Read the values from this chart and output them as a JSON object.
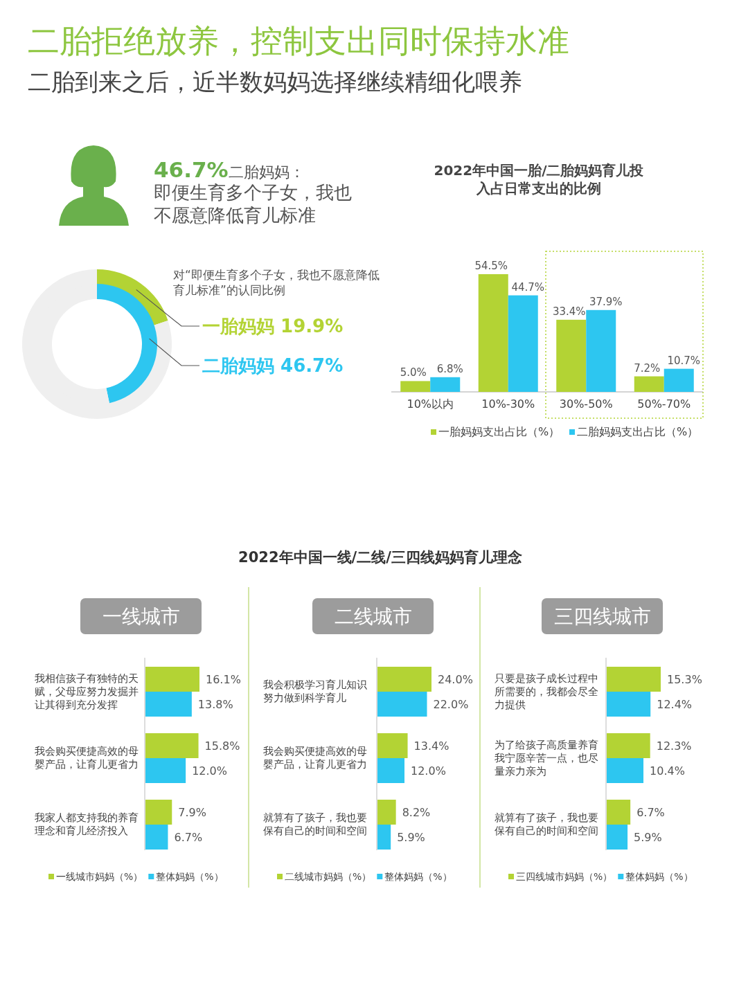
{
  "chart_data": [
    {
      "type": "other",
      "title": "二胎拒绝放养，控制支出同时保持水准",
      "subtitle": "二胎到来之后，近半数妈妈选择继续精细化喂养",
      "annotations": [
        "46.7%",
        "二胎妈妈：",
        "即便生育多个子女，我也不愿意降低育儿标准"
      ]
    },
    {
      "type": "donut",
      "title": "对“即便生育多个子女，我也不愿意降低育儿标准”的认同比例",
      "categories": [
        "一胎妈妈",
        null
      ],
      "values": [
        19.9,
        80.1
      ],
      "colors": [
        "#b3d334",
        "#efefef"
      ],
      "value_labels": [
        "19.9%",
        null
      ]
    },
    {
      "type": "donut",
      "categories": [
        "二胎妈妈",
        null
      ],
      "values": [
        46.7,
        53.3
      ],
      "colors": [
        "#2dc6f0",
        "#efefef"
      ],
      "value_labels": [
        "46.7%",
        null
      ]
    },
    {
      "type": "bar",
      "title": "2022年中国一胎/二胎妈妈育儿投入占日常支出的比例",
      "categories": [
        "10%以内",
        "10%-30%",
        "30%-50%",
        "50%-70%"
      ],
      "legend": "bottom",
      "series": [
        {
          "name": "一胎妈妈支出占比（%）",
          "color": "#b3d334",
          "values": [
            5.0,
            54.5,
            33.4,
            7.2
          ],
          "value_labels": [
            "5.0%",
            "54.5%",
            "33.4%",
            "7.2%"
          ]
        },
        {
          "name": "二胎妈妈支出占比（%）",
          "color": "#2dc6f0",
          "values": [
            6.8,
            44.7,
            37.9,
            10.7
          ],
          "value_labels": [
            "6.8%",
            "44.7%",
            "37.9%",
            "10.7%"
          ]
        }
      ]
    },
    {
      "type": "other",
      "title": "2022年中国一线/二线/三四线妈妈育儿理念"
    },
    {
      "type": "bar",
      "orientation": "horizontal",
      "title": "一线城市",
      "categories": [
        "我相信孩子有独特的天赋，父母应努力发掘并让其得到充分发挥",
        "我会购买便捷高效的母婴产品，让育儿更省力",
        "我家人都支持我的养育理念和育儿经济投入"
      ],
      "legend": "bottom",
      "series": [
        {
          "name": "一线城市妈妈（%）",
          "color": "#b3d334",
          "values": [
            16.1,
            15.8,
            7.9
          ],
          "value_labels": [
            "16.1%",
            "15.8%",
            "7.9%"
          ]
        },
        {
          "name": "整体妈妈（%）",
          "color": "#2dc6f0",
          "values": [
            13.8,
            12.0,
            6.7
          ],
          "value_labels": [
            "13.8%",
            "12.0%",
            "6.7%"
          ]
        }
      ]
    },
    {
      "type": "bar",
      "orientation": "horizontal",
      "title": "二线城市",
      "categories": [
        "我会积极学习育儿知识努力做到科学育儿",
        "我会购买便捷高效的母婴产品，让育儿更省力",
        "就算有了孩子，我也要保有自己的时间和空间"
      ],
      "legend": "bottom",
      "series": [
        {
          "name": "二线城市妈妈（%）",
          "color": "#b3d334",
          "values": [
            24.0,
            13.4,
            8.2
          ],
          "value_labels": [
            "24.0%",
            "13.4%",
            "8.2%"
          ]
        },
        {
          "name": "整体妈妈（%）",
          "color": "#2dc6f0",
          "values": [
            22.0,
            12.0,
            5.9
          ],
          "value_labels": [
            "22.0%",
            "12.0%",
            "5.9%"
          ]
        }
      ]
    },
    {
      "type": "bar",
      "orientation": "horizontal",
      "title": "三四线城市",
      "categories": [
        "只要是孩子成长过程中所需要的，我都会尽全力提供",
        "为了给孩子高质量养育我宁愿辛苦一点，也尽量亲力亲为",
        "就算有了孩子，我也要保有自己的时间和空间"
      ],
      "legend": "bottom",
      "series": [
        {
          "name": "三四线城市妈妈（%）",
          "color": "#b3d334",
          "values": [
            15.3,
            12.3,
            6.7
          ],
          "value_labels": [
            "15.3%",
            "12.3%",
            "6.7%"
          ]
        },
        {
          "name": "整体妈妈（%）",
          "color": "#2dc6f0",
          "values": [
            12.4,
            10.4,
            5.9
          ],
          "value_labels": [
            "12.4%",
            "10.4%",
            "5.9%"
          ]
        }
      ]
    }
  ]
}
